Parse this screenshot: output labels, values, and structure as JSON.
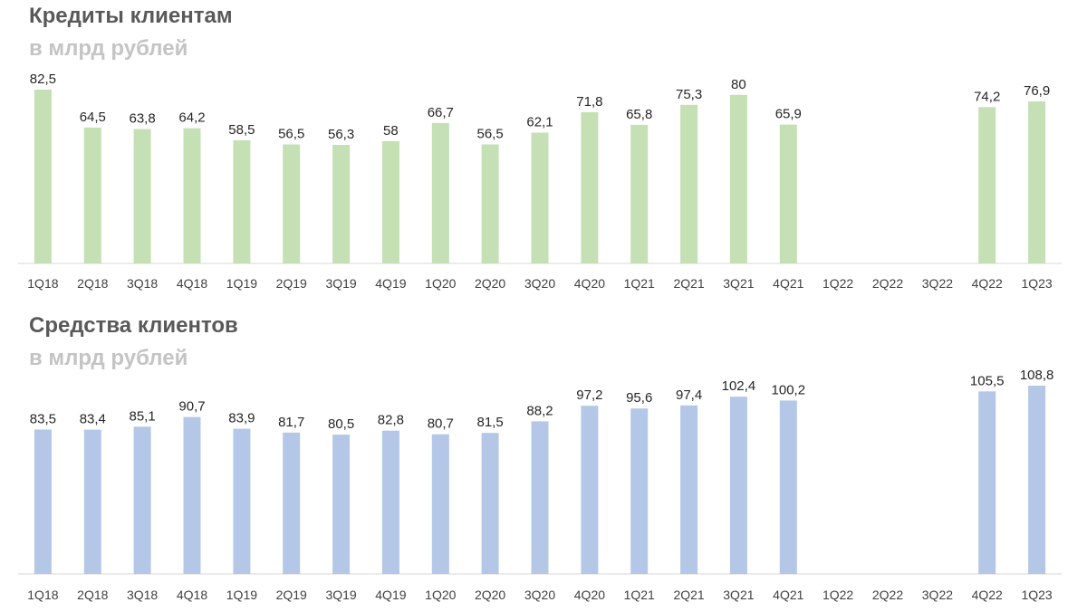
{
  "chart_data": [
    {
      "type": "bar",
      "title": "Кредиты клиентам",
      "subtitle": "в млрд рублей",
      "categories": [
        "1Q18",
        "2Q18",
        "3Q18",
        "4Q18",
        "1Q19",
        "2Q19",
        "3Q19",
        "4Q19",
        "1Q20",
        "2Q20",
        "3Q20",
        "4Q20",
        "1Q21",
        "2Q21",
        "3Q21",
        "4Q21",
        "1Q22",
        "2Q22",
        "3Q22",
        "4Q22",
        "1Q23"
      ],
      "values": [
        82.5,
        64.5,
        63.8,
        64.2,
        58.5,
        56.5,
        56.3,
        58,
        66.7,
        56.5,
        62.1,
        71.8,
        65.8,
        75.3,
        80,
        65.9,
        null,
        null,
        null,
        74.2,
        76.9
      ],
      "data_labels": [
        "82,5",
        "64,5",
        "63,8",
        "64,2",
        "58,5",
        "56,5",
        "56,3",
        "58",
        "66,7",
        "56,5",
        "62,1",
        "71,8",
        "65,8",
        "75,3",
        "80",
        "65,9",
        "",
        "",
        "",
        "74,2",
        "76,9"
      ],
      "bar_color": "#c5e0b4",
      "ylim": [
        0,
        82.5
      ],
      "grid": false,
      "legend": "none"
    },
    {
      "type": "bar",
      "title": "Средства клиентов",
      "subtitle": "в млрд рублей",
      "categories": [
        "1Q18",
        "2Q18",
        "3Q18",
        "4Q18",
        "1Q19",
        "2Q19",
        "3Q19",
        "4Q19",
        "1Q20",
        "2Q20",
        "3Q20",
        "4Q20",
        "1Q21",
        "2Q21",
        "3Q21",
        "4Q21",
        "1Q22",
        "2Q22",
        "3Q22",
        "4Q22",
        "1Q23"
      ],
      "values": [
        83.5,
        83.4,
        85.1,
        90.7,
        83.9,
        81.7,
        80.5,
        82.8,
        80.7,
        81.5,
        88.2,
        97.2,
        95.6,
        97.4,
        102.4,
        100.2,
        null,
        null,
        null,
        105.5,
        108.8
      ],
      "data_labels": [
        "83,5",
        "83,4",
        "85,1",
        "90,7",
        "83,9",
        "81,7",
        "80,5",
        "82,8",
        "80,7",
        "81,5",
        "88,2",
        "97,2",
        "95,6",
        "97,4",
        "102,4",
        "100,2",
        "",
        "",
        "",
        "105,5",
        "108,8"
      ],
      "bar_color": "#b4c7e7",
      "ylim": [
        0,
        108.8
      ],
      "grid": false,
      "legend": "none"
    }
  ]
}
